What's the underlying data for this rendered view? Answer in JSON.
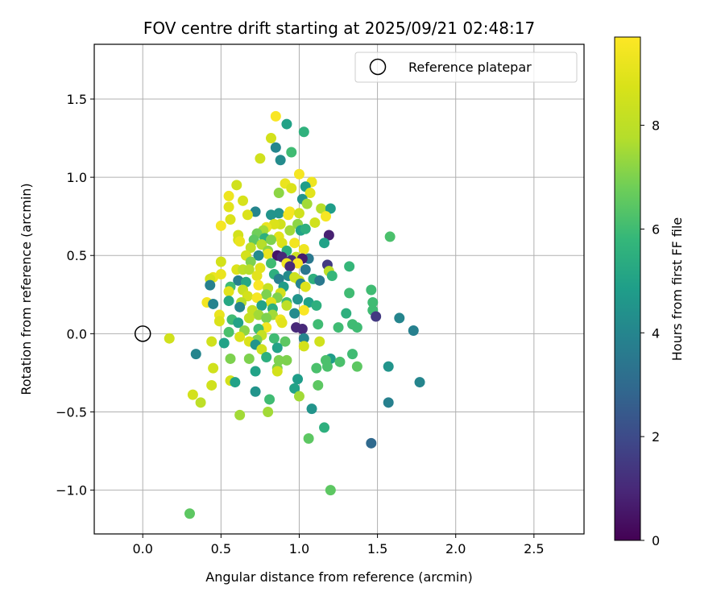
{
  "chart_data": {
    "type": "scatter",
    "title": "FOV centre drift starting at 2025/09/21 02:48:17",
    "xlabel": "Angular distance from reference (arcmin)",
    "ylabel": "Rotation from reference (arcmin)",
    "xlim": [
      -0.31,
      2.82
    ],
    "ylim": [
      -1.28,
      1.85
    ],
    "xticks": [
      0.0,
      0.5,
      1.0,
      1.5,
      2.0,
      2.5
    ],
    "xtick_labels": [
      "0.0",
      "0.5",
      "1.0",
      "1.5",
      "2.0",
      "2.5"
    ],
    "yticks": [
      -1.0,
      -0.5,
      0.0,
      0.5,
      1.0,
      1.5
    ],
    "ytick_labels": [
      "−1.0",
      "−0.5",
      "0.0",
      "0.5",
      "1.0",
      "1.5"
    ],
    "grid": true,
    "legend": {
      "location": "top-right",
      "entries": [
        "Reference platepar"
      ]
    },
    "reference_point": {
      "name": "Reference platepar",
      "x": 0.0,
      "y": 0.0
    },
    "colorbar": {
      "label": "Hours from first FF file",
      "colormap": "viridis",
      "range": [
        0,
        9.7
      ],
      "ticks": [
        0,
        2,
        4,
        6,
        8
      ],
      "tick_labels": [
        "0",
        "2",
        "4",
        "6",
        "8"
      ]
    },
    "points": [
      [
        0.85,
        1.39,
        9.6
      ],
      [
        0.92,
        1.34,
        5.0
      ],
      [
        1.03,
        1.29,
        5.6
      ],
      [
        0.82,
        1.25,
        8.6
      ],
      [
        0.85,
        1.19,
        4.0
      ],
      [
        0.95,
        1.16,
        6.0
      ],
      [
        0.75,
        1.12,
        8.5
      ],
      [
        0.88,
        1.11,
        4.2
      ],
      [
        1.0,
        1.02,
        9.5
      ],
      [
        1.08,
        0.97,
        9.3
      ],
      [
        0.91,
        0.96,
        9.2
      ],
      [
        1.04,
        0.94,
        4.8
      ],
      [
        0.6,
        0.95,
        8.5
      ],
      [
        0.95,
        0.93,
        8.8
      ],
      [
        0.87,
        0.9,
        7.2
      ],
      [
        0.55,
        0.88,
        9.3
      ],
      [
        1.07,
        0.9,
        9.0
      ],
      [
        1.02,
        0.86,
        4.5
      ],
      [
        0.64,
        0.85,
        8.7
      ],
      [
        1.05,
        0.83,
        7.5
      ],
      [
        0.55,
        0.81,
        9.0
      ],
      [
        1.14,
        0.8,
        7.8
      ],
      [
        1.2,
        0.8,
        4.8
      ],
      [
        0.72,
        0.78,
        4.0
      ],
      [
        0.94,
        0.78,
        9.5
      ],
      [
        0.87,
        0.77,
        4.5
      ],
      [
        0.93,
        0.76,
        9.5
      ],
      [
        0.82,
        0.76,
        4.5
      ],
      [
        0.67,
        0.76,
        8.8
      ],
      [
        1.0,
        0.77,
        8.5
      ],
      [
        1.17,
        0.75,
        9.5
      ],
      [
        0.56,
        0.73,
        8.8
      ],
      [
        1.1,
        0.71,
        8.5
      ],
      [
        0.99,
        0.7,
        7.2
      ],
      [
        0.88,
        0.7,
        8.5
      ],
      [
        0.84,
        0.7,
        8.8
      ],
      [
        0.5,
        0.69,
        9.5
      ],
      [
        0.79,
        0.68,
        9.2
      ],
      [
        0.77,
        0.66,
        7.5
      ],
      [
        1.01,
        0.66,
        5.0
      ],
      [
        1.04,
        0.67,
        5.5
      ],
      [
        0.94,
        0.66,
        7.5
      ],
      [
        0.73,
        0.64,
        6.8
      ],
      [
        0.61,
        0.63,
        8.6
      ],
      [
        0.87,
        0.62,
        9.0
      ],
      [
        1.19,
        0.63,
        0.8
      ],
      [
        0.78,
        0.61,
        5.5
      ],
      [
        0.82,
        0.6,
        7.0
      ],
      [
        0.71,
        0.6,
        6.5
      ],
      [
        0.61,
        0.6,
        8.6
      ],
      [
        0.62,
        0.59,
        9.2
      ],
      [
        0.89,
        0.58,
        8.8
      ],
      [
        0.97,
        0.58,
        9.4
      ],
      [
        1.58,
        0.62,
        6.2
      ],
      [
        1.16,
        0.58,
        5.0
      ],
      [
        0.76,
        0.57,
        7.8
      ],
      [
        0.69,
        0.55,
        8.0
      ],
      [
        0.92,
        0.53,
        5.5
      ],
      [
        1.03,
        0.54,
        9.3
      ],
      [
        0.8,
        0.53,
        7.2
      ],
      [
        0.8,
        0.51,
        9.2
      ],
      [
        0.66,
        0.5,
        8.6
      ],
      [
        0.74,
        0.5,
        4.2
      ],
      [
        0.86,
        0.5,
        0.5
      ],
      [
        0.89,
        0.49,
        1.0
      ],
      [
        0.98,
        0.49,
        8.4
      ],
      [
        1.06,
        0.48,
        3.5
      ],
      [
        0.95,
        0.47,
        1.2
      ],
      [
        1.02,
        0.48,
        0.7
      ],
      [
        0.69,
        0.46,
        7.0
      ],
      [
        0.82,
        0.45,
        6.0
      ],
      [
        0.92,
        0.45,
        9.3
      ],
      [
        0.99,
        0.45,
        9.6
      ],
      [
        0.5,
        0.46,
        8.6
      ],
      [
        1.04,
        0.41,
        3.5
      ],
      [
        1.18,
        0.44,
        1.5
      ],
      [
        0.94,
        0.43,
        1.0
      ],
      [
        1.19,
        0.4,
        8.0
      ],
      [
        0.6,
        0.41,
        8.8
      ],
      [
        0.64,
        0.41,
        8.0
      ],
      [
        1.32,
        0.43,
        5.8
      ],
      [
        0.75,
        0.42,
        9.0
      ],
      [
        0.68,
        0.41,
        7.8
      ],
      [
        0.84,
        0.38,
        5.5
      ],
      [
        1.21,
        0.37,
        5.8
      ],
      [
        0.5,
        0.38,
        9.2
      ],
      [
        0.45,
        0.36,
        9.2
      ],
      [
        0.43,
        0.35,
        8.6
      ],
      [
        0.73,
        0.37,
        9.0
      ],
      [
        0.87,
        0.35,
        3.8
      ],
      [
        0.93,
        0.37,
        4.2
      ],
      [
        0.97,
        0.36,
        8.4
      ],
      [
        1.09,
        0.35,
        5.5
      ],
      [
        1.13,
        0.34,
        3.5
      ],
      [
        1.0,
        0.34,
        8.4
      ],
      [
        0.61,
        0.34,
        3.8
      ],
      [
        0.66,
        0.33,
        5.2
      ],
      [
        1.01,
        0.32,
        3.9
      ],
      [
        0.9,
        0.3,
        4.8
      ],
      [
        0.43,
        0.31,
        3.8
      ],
      [
        0.56,
        0.3,
        6.0
      ],
      [
        0.74,
        0.31,
        9.6
      ],
      [
        0.8,
        0.29,
        8.2
      ],
      [
        1.04,
        0.3,
        8.9
      ],
      [
        0.64,
        0.28,
        8.3
      ],
      [
        0.55,
        0.27,
        9.0
      ],
      [
        0.88,
        0.26,
        8.6
      ],
      [
        1.46,
        0.28,
        6.0
      ],
      [
        0.79,
        0.25,
        7.0
      ],
      [
        1.32,
        0.26,
        6.0
      ],
      [
        0.67,
        0.24,
        8.6
      ],
      [
        0.73,
        0.23,
        9.5
      ],
      [
        0.86,
        0.23,
        7.0
      ],
      [
        0.99,
        0.22,
        4.5
      ],
      [
        0.41,
        0.2,
        9.4
      ],
      [
        0.55,
        0.21,
        5.2
      ],
      [
        0.63,
        0.2,
        7.8
      ],
      [
        0.82,
        0.2,
        9.0
      ],
      [
        0.92,
        0.2,
        6.0
      ],
      [
        1.06,
        0.2,
        5.0
      ],
      [
        1.47,
        0.2,
        6.0
      ],
      [
        0.76,
        0.18,
        5.0
      ],
      [
        0.62,
        0.17,
        4.0
      ],
      [
        0.45,
        0.19,
        3.9
      ],
      [
        0.83,
        0.16,
        5.5
      ],
      [
        0.92,
        0.18,
        8.0
      ],
      [
        1.11,
        0.18,
        5.5
      ],
      [
        0.7,
        0.15,
        8.2
      ],
      [
        1.47,
        0.15,
        6.0
      ],
      [
        1.03,
        0.15,
        9.6
      ],
      [
        1.3,
        0.13,
        5.5
      ],
      [
        0.49,
        0.12,
        9.2
      ],
      [
        0.74,
        0.12,
        7.5
      ],
      [
        0.83,
        0.12,
        7.5
      ],
      [
        0.97,
        0.13,
        4.2
      ],
      [
        1.49,
        0.11,
        1.5
      ],
      [
        0.57,
        0.09,
        6.0
      ],
      [
        0.68,
        0.1,
        8.2
      ],
      [
        0.79,
        0.1,
        7.0
      ],
      [
        0.88,
        0.09,
        9.3
      ],
      [
        0.49,
        0.08,
        8.8
      ],
      [
        0.61,
        0.07,
        5.0
      ],
      [
        0.89,
        0.07,
        9.0
      ],
      [
        1.34,
        0.06,
        6.0
      ],
      [
        1.64,
        0.1,
        4.0
      ],
      [
        1.12,
        0.06,
        6.0
      ],
      [
        1.37,
        0.04,
        6.0
      ],
      [
        1.25,
        0.04,
        6.0
      ],
      [
        0.79,
        0.04,
        9.5
      ],
      [
        0.98,
        0.04,
        1.0
      ],
      [
        1.02,
        0.03,
        1.0
      ],
      [
        0.74,
        0.03,
        6.0
      ],
      [
        0.65,
        0.02,
        7.2
      ],
      [
        1.73,
        0.02,
        3.8
      ],
      [
        0.55,
        0.01,
        6.2
      ],
      [
        0.76,
        -0.01,
        8.2
      ],
      [
        0.62,
        -0.02,
        8.8
      ],
      [
        0.84,
        -0.03,
        6.0
      ],
      [
        0.17,
        -0.03,
        8.5
      ],
      [
        1.03,
        -0.03,
        4.0
      ],
      [
        0.73,
        -0.04,
        7.0
      ],
      [
        0.68,
        -0.05,
        8.8
      ],
      [
        0.44,
        -0.05,
        8.5
      ],
      [
        1.13,
        -0.05,
        8.5
      ],
      [
        0.91,
        -0.05,
        6.5
      ],
      [
        0.52,
        -0.06,
        5.0
      ],
      [
        0.72,
        -0.07,
        4.5
      ],
      [
        1.03,
        -0.08,
        8.6
      ],
      [
        0.86,
        -0.09,
        5.0
      ],
      [
        0.76,
        -0.1,
        8.5
      ],
      [
        0.34,
        -0.13,
        4.0
      ],
      [
        1.34,
        -0.13,
        6.0
      ],
      [
        0.79,
        -0.15,
        5.5
      ],
      [
        0.56,
        -0.16,
        7.0
      ],
      [
        1.2,
        -0.16,
        4.8
      ],
      [
        0.68,
        -0.16,
        7.0
      ],
      [
        1.17,
        -0.17,
        6.2
      ],
      [
        0.87,
        -0.17,
        7.0
      ],
      [
        0.92,
        -0.17,
        7.0
      ],
      [
        1.26,
        -0.18,
        6.2
      ],
      [
        1.37,
        -0.21,
        6.5
      ],
      [
        1.18,
        -0.21,
        6.2
      ],
      [
        1.57,
        -0.21,
        4.5
      ],
      [
        1.11,
        -0.22,
        6.2
      ],
      [
        0.45,
        -0.22,
        8.5
      ],
      [
        0.86,
        -0.22,
        7.0
      ],
      [
        0.86,
        -0.24,
        8.6
      ],
      [
        0.72,
        -0.24,
        5.0
      ],
      [
        0.99,
        -0.29,
        4.8
      ],
      [
        0.56,
        -0.3,
        8.6
      ],
      [
        0.59,
        -0.31,
        5.0
      ],
      [
        1.77,
        -0.31,
        4.0
      ],
      [
        1.12,
        -0.33,
        6.5
      ],
      [
        0.44,
        -0.33,
        8.5
      ],
      [
        0.97,
        -0.35,
        5.0
      ],
      [
        0.72,
        -0.37,
        4.5
      ],
      [
        0.32,
        -0.39,
        8.6
      ],
      [
        1.0,
        -0.4,
        7.5
      ],
      [
        0.81,
        -0.42,
        6.0
      ],
      [
        0.37,
        -0.44,
        8.0
      ],
      [
        1.57,
        -0.44,
        3.8
      ],
      [
        1.08,
        -0.48,
        4.5
      ],
      [
        0.8,
        -0.5,
        7.5
      ],
      [
        0.62,
        -0.52,
        7.5
      ],
      [
        1.16,
        -0.6,
        5.5
      ],
      [
        1.06,
        -0.67,
        6.5
      ],
      [
        1.46,
        -0.7,
        3.0
      ],
      [
        1.2,
        -1.0,
        6.5
      ],
      [
        0.3,
        -1.15,
        6.5
      ]
    ]
  }
}
